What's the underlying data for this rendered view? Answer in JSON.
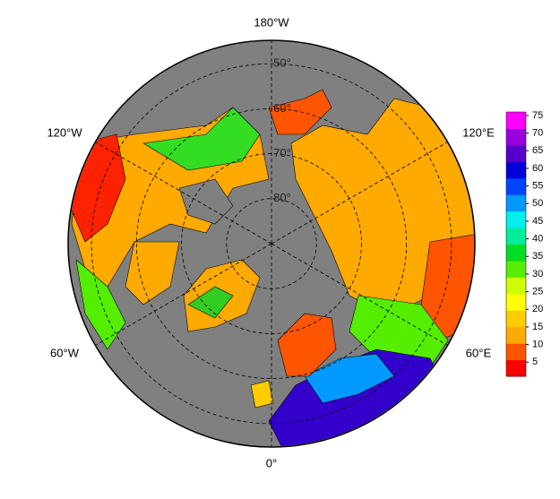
{
  "map": {
    "projection": "north polar",
    "latlim": [
      45,
      90
    ],
    "lat_circles": [
      {
        "value": 50,
        "label": "50°"
      },
      {
        "value": 60,
        "label": "60°"
      },
      {
        "value": 70,
        "label": "70°"
      },
      {
        "value": 80,
        "label": "80°"
      }
    ],
    "lon_lines": [
      {
        "value": 180,
        "label": "180°W"
      },
      {
        "value": 120,
        "label": "120°E"
      },
      {
        "value": 60,
        "label": "60°E"
      },
      {
        "value": 0,
        "label": "0°"
      },
      {
        "value": -60,
        "label": "60°W"
      },
      {
        "value": -120,
        "label": "120°W"
      }
    ],
    "colorbar": {
      "lim": [
        1,
        76
      ],
      "ticks": [
        5,
        10,
        15,
        20,
        25,
        30,
        35,
        40,
        45,
        50,
        55,
        60,
        65,
        70,
        75
      ],
      "colors": [
        "#ff0000",
        "#ff5500",
        "#ffaa00",
        "#ffcc00",
        "#ffff00",
        "#ccff00",
        "#55ee00",
        "#00dd22",
        "#00ee99",
        "#00eeee",
        "#0099ff",
        "#0044ff",
        "#0000dd",
        "#5500cc",
        "#9900dd",
        "#ff00ff"
      ]
    }
  }
}
